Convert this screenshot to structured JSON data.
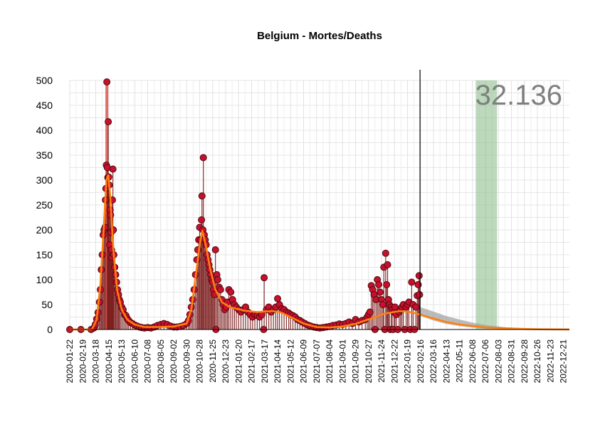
{
  "chart_data": {
    "type": "line",
    "title": "Belgium - Mortes/Deaths",
    "annotation_total": "32.136",
    "xlabel": "",
    "ylabel": "",
    "ylim": [
      0,
      500
    ],
    "yticks": [
      0,
      50,
      100,
      150,
      200,
      250,
      300,
      350,
      400,
      450,
      500
    ],
    "x_range": [
      "2020-01-22",
      "2023-01-03"
    ],
    "xticks": [
      "2020-01-22",
      "2020-02-19",
      "2020-03-18",
      "2020-04-15",
      "2020-05-13",
      "2020-06-10",
      "2020-07-08",
      "2020-08-05",
      "2020-09-02",
      "2020-09-30",
      "2020-10-28",
      "2020-11-25",
      "2020-12-23",
      "2021-01-20",
      "2021-02-17",
      "2021-03-17",
      "2021-04-14",
      "2021-05-12",
      "2021-06-09",
      "2021-07-07",
      "2021-08-04",
      "2021-09-01",
      "2021-09-29",
      "2021-10-27",
      "2021-11-24",
      "2021-12-22",
      "2022-01-19",
      "2022-02-16",
      "2022-03-16",
      "2022-04-13",
      "2022-05-11",
      "2022-06-08",
      "2022-07-06",
      "2022-08-03",
      "2022-08-31",
      "2022-09-28",
      "2022-10-26",
      "2022-11-23",
      "2022-12-21"
    ],
    "grid": true,
    "legend": "none",
    "vline_date": "2022-02-15",
    "highlight_band": [
      "2022-06-15",
      "2022-07-31"
    ],
    "series": [
      {
        "kind": "daily_points",
        "points": [
          [
            "2020-01-22",
            0
          ],
          [
            "2020-02-15",
            0
          ],
          [
            "2020-03-08",
            0
          ],
          [
            "2020-03-14",
            3
          ],
          [
            "2020-03-17",
            10
          ],
          [
            "2020-03-20",
            21
          ],
          [
            "2020-03-23",
            34
          ],
          [
            "2020-03-26",
            55
          ],
          [
            "2020-03-28",
            80
          ],
          [
            "2020-03-30",
            120
          ],
          [
            "2020-04-01",
            150
          ],
          [
            "2020-04-03",
            190
          ],
          [
            "2020-04-05",
            200
          ],
          [
            "2020-04-07",
            205
          ],
          [
            "2020-04-08",
            260
          ],
          [
            "2020-04-09",
            283
          ],
          [
            "2020-04-10",
            330
          ],
          [
            "2020-04-11",
            497
          ],
          [
            "2020-04-12",
            325
          ],
          [
            "2020-04-13",
            305
          ],
          [
            "2020-04-14",
            417
          ],
          [
            "2020-04-15",
            306
          ],
          [
            "2020-04-16",
            290
          ],
          [
            "2020-04-17",
            170
          ],
          [
            "2020-04-18",
            240
          ],
          [
            "2020-04-19",
            230
          ],
          [
            "2020-04-20",
            195
          ],
          [
            "2020-04-21",
            160
          ],
          [
            "2020-04-22",
            145
          ],
          [
            "2020-04-23",
            260
          ],
          [
            "2020-04-24",
            322
          ],
          [
            "2020-04-25",
            200
          ],
          [
            "2020-04-26",
            150
          ],
          [
            "2020-04-28",
            125
          ],
          [
            "2020-04-30",
            110
          ],
          [
            "2020-05-02",
            95
          ],
          [
            "2020-05-04",
            80
          ],
          [
            "2020-05-06",
            70
          ],
          [
            "2020-05-08",
            60
          ],
          [
            "2020-05-10",
            55
          ],
          [
            "2020-05-13",
            45
          ],
          [
            "2020-05-16",
            40
          ],
          [
            "2020-05-19",
            30
          ],
          [
            "2020-05-22",
            28
          ],
          [
            "2020-05-25",
            22
          ],
          [
            "2020-05-28",
            18
          ],
          [
            "2020-06-01",
            14
          ],
          [
            "2020-06-05",
            12
          ],
          [
            "2020-06-10",
            9
          ],
          [
            "2020-06-15",
            7
          ],
          [
            "2020-06-20",
            5
          ],
          [
            "2020-06-25",
            4
          ],
          [
            "2020-07-01",
            3
          ],
          [
            "2020-07-08",
            4
          ],
          [
            "2020-07-15",
            3
          ],
          [
            "2020-07-22",
            5
          ],
          [
            "2020-07-29",
            8
          ],
          [
            "2020-08-05",
            10
          ],
          [
            "2020-08-12",
            12
          ],
          [
            "2020-08-19",
            10
          ],
          [
            "2020-08-26",
            7
          ],
          [
            "2020-09-02",
            5
          ],
          [
            "2020-09-09",
            5
          ],
          [
            "2020-09-16",
            6
          ],
          [
            "2020-09-23",
            8
          ],
          [
            "2020-09-30",
            12
          ],
          [
            "2020-10-04",
            18
          ],
          [
            "2020-10-07",
            30
          ],
          [
            "2020-10-10",
            45
          ],
          [
            "2020-10-13",
            60
          ],
          [
            "2020-10-16",
            80
          ],
          [
            "2020-10-19",
            110
          ],
          [
            "2020-10-22",
            140
          ],
          [
            "2020-10-24",
            160
          ],
          [
            "2020-10-26",
            180
          ],
          [
            "2020-10-28",
            205
          ],
          [
            "2020-10-30",
            180
          ],
          [
            "2020-11-01",
            220
          ],
          [
            "2020-11-02",
            268
          ],
          [
            "2020-11-04",
            200
          ],
          [
            "2020-11-05",
            345
          ],
          [
            "2020-11-07",
            190
          ],
          [
            "2020-11-09",
            180
          ],
          [
            "2020-11-11",
            170
          ],
          [
            "2020-11-13",
            150
          ],
          [
            "2020-11-15",
            140
          ],
          [
            "2020-11-17",
            130
          ],
          [
            "2020-11-19",
            120
          ],
          [
            "2020-11-21",
            110
          ],
          [
            "2020-11-23",
            100
          ],
          [
            "2020-11-25",
            95
          ],
          [
            "2020-11-27",
            80
          ],
          [
            "2020-11-29",
            70
          ],
          [
            "2020-12-01",
            160
          ],
          [
            "2020-12-02",
            0
          ],
          [
            "2020-12-04",
            110
          ],
          [
            "2020-12-06",
            100
          ],
          [
            "2020-12-09",
            85
          ],
          [
            "2020-12-12",
            80
          ],
          [
            "2020-12-15",
            60
          ],
          [
            "2020-12-18",
            50
          ],
          [
            "2020-12-21",
            40
          ],
          [
            "2020-12-24",
            45
          ],
          [
            "2020-12-27",
            55
          ],
          [
            "2020-12-30",
            80
          ],
          [
            "2021-01-03",
            75
          ],
          [
            "2021-01-07",
            60
          ],
          [
            "2021-01-11",
            50
          ],
          [
            "2021-01-15",
            45
          ],
          [
            "2021-01-20",
            40
          ],
          [
            "2021-01-25",
            35
          ],
          [
            "2021-01-30",
            40
          ],
          [
            "2021-02-04",
            45
          ],
          [
            "2021-02-09",
            35
          ],
          [
            "2021-02-14",
            30
          ],
          [
            "2021-02-19",
            25
          ],
          [
            "2021-02-24",
            30
          ],
          [
            "2021-03-01",
            28
          ],
          [
            "2021-03-06",
            25
          ],
          [
            "2021-03-11",
            30
          ],
          [
            "2021-03-15",
            0
          ],
          [
            "2021-03-16",
            104
          ],
          [
            "2021-03-21",
            40
          ],
          [
            "2021-03-26",
            45
          ],
          [
            "2021-03-31",
            35
          ],
          [
            "2021-04-05",
            40
          ],
          [
            "2021-04-10",
            45
          ],
          [
            "2021-04-14",
            62
          ],
          [
            "2021-04-18",
            50
          ],
          [
            "2021-04-23",
            42
          ],
          [
            "2021-04-28",
            40
          ],
          [
            "2021-05-03",
            35
          ],
          [
            "2021-05-08",
            33
          ],
          [
            "2021-05-12",
            30
          ],
          [
            "2021-05-17",
            28
          ],
          [
            "2021-05-22",
            25
          ],
          [
            "2021-05-27",
            20
          ],
          [
            "2021-06-01",
            18
          ],
          [
            "2021-06-06",
            15
          ],
          [
            "2021-06-12",
            12
          ],
          [
            "2021-06-18",
            9
          ],
          [
            "2021-06-24",
            7
          ],
          [
            "2021-07-01",
            5
          ],
          [
            "2021-07-07",
            4
          ],
          [
            "2021-07-14",
            3
          ],
          [
            "2021-07-21",
            4
          ],
          [
            "2021-07-28",
            5
          ],
          [
            "2021-08-04",
            6
          ],
          [
            "2021-08-11",
            8
          ],
          [
            "2021-08-18",
            9
          ],
          [
            "2021-08-25",
            11
          ],
          [
            "2021-09-01",
            10
          ],
          [
            "2021-09-08",
            12
          ],
          [
            "2021-09-15",
            15
          ],
          [
            "2021-09-22",
            12
          ],
          [
            "2021-09-29",
            20
          ],
          [
            "2021-10-06",
            15
          ],
          [
            "2021-10-13",
            18
          ],
          [
            "2021-10-20",
            20
          ],
          [
            "2021-10-24",
            25
          ],
          [
            "2021-10-27",
            30
          ],
          [
            "2021-10-30",
            35
          ],
          [
            "2021-11-02",
            88
          ],
          [
            "2021-11-05",
            80
          ],
          [
            "2021-11-08",
            70
          ],
          [
            "2021-11-10",
            0
          ],
          [
            "2021-11-12",
            60
          ],
          [
            "2021-11-15",
            100
          ],
          [
            "2021-11-18",
            90
          ],
          [
            "2021-11-21",
            75
          ],
          [
            "2021-11-24",
            60
          ],
          [
            "2021-11-27",
            50
          ],
          [
            "2021-11-29",
            125
          ],
          [
            "2021-12-01",
            0
          ],
          [
            "2021-12-03",
            153
          ],
          [
            "2021-12-05",
            90
          ],
          [
            "2021-12-07",
            130
          ],
          [
            "2021-12-09",
            60
          ],
          [
            "2021-12-11",
            50
          ],
          [
            "2021-12-13",
            0
          ],
          [
            "2021-12-15",
            45
          ],
          [
            "2021-12-17",
            40
          ],
          [
            "2021-12-19",
            0
          ],
          [
            "2021-12-21",
            35
          ],
          [
            "2021-12-23",
            45
          ],
          [
            "2021-12-26",
            30
          ],
          [
            "2021-12-29",
            0
          ],
          [
            "2022-01-01",
            35
          ],
          [
            "2022-01-04",
            40
          ],
          [
            "2022-01-07",
            45
          ],
          [
            "2022-01-10",
            50
          ],
          [
            "2022-01-13",
            0
          ],
          [
            "2022-01-16",
            45
          ],
          [
            "2022-01-19",
            50
          ],
          [
            "2022-01-22",
            55
          ],
          [
            "2022-01-25",
            0
          ],
          [
            "2022-01-28",
            95
          ],
          [
            "2022-01-31",
            50
          ],
          [
            "2022-02-03",
            0
          ],
          [
            "2022-02-06",
            45
          ],
          [
            "2022-02-09",
            68
          ],
          [
            "2022-02-11",
            90
          ],
          [
            "2022-02-13",
            108
          ],
          [
            "2022-02-14",
            70
          ]
        ]
      },
      {
        "kind": "smooth_fit",
        "points": [
          [
            "2020-01-22",
            0
          ],
          [
            "2020-03-10",
            0
          ],
          [
            "2020-03-20",
            20
          ],
          [
            "2020-03-28",
            90
          ],
          [
            "2020-04-04",
            200
          ],
          [
            "2020-04-10",
            300
          ],
          [
            "2020-04-14",
            310
          ],
          [
            "2020-04-18",
            270
          ],
          [
            "2020-04-25",
            160
          ],
          [
            "2020-05-03",
            80
          ],
          [
            "2020-05-13",
            40
          ],
          [
            "2020-05-25",
            20
          ],
          [
            "2020-06-10",
            10
          ],
          [
            "2020-07-01",
            5
          ],
          [
            "2020-08-01",
            5
          ],
          [
            "2020-09-02",
            6
          ],
          [
            "2020-09-30",
            12
          ],
          [
            "2020-10-10",
            40
          ],
          [
            "2020-10-20",
            110
          ],
          [
            "2020-10-28",
            170
          ],
          [
            "2020-11-03",
            198
          ],
          [
            "2020-11-10",
            170
          ],
          [
            "2020-11-20",
            120
          ],
          [
            "2020-12-01",
            80
          ],
          [
            "2020-12-15",
            55
          ],
          [
            "2021-01-01",
            45
          ],
          [
            "2021-02-01",
            38
          ],
          [
            "2021-03-01",
            35
          ],
          [
            "2021-04-01",
            37
          ],
          [
            "2021-04-20",
            35
          ],
          [
            "2021-05-12",
            25
          ],
          [
            "2021-06-09",
            12
          ],
          [
            "2021-07-07",
            5
          ],
          [
            "2021-08-04",
            4
          ],
          [
            "2021-09-01",
            6
          ],
          [
            "2021-10-01",
            12
          ],
          [
            "2021-11-01",
            22
          ],
          [
            "2021-12-01",
            32
          ],
          [
            "2022-01-01",
            37
          ],
          [
            "2022-01-20",
            36
          ],
          [
            "2022-02-15",
            30
          ],
          [
            "2022-03-16",
            22
          ],
          [
            "2022-04-13",
            15
          ],
          [
            "2022-05-11",
            10
          ],
          [
            "2022-06-08",
            7
          ],
          [
            "2022-07-06",
            4
          ],
          [
            "2022-08-03",
            3
          ],
          [
            "2022-09-01",
            2
          ],
          [
            "2022-10-01",
            1
          ],
          [
            "2022-11-01",
            0.5
          ],
          [
            "2022-12-01",
            0.2
          ],
          [
            "2023-01-03",
            0.1
          ]
        ]
      },
      {
        "kind": "forecast_band",
        "points": [
          [
            "2022-02-15",
            28,
            45
          ],
          [
            "2022-03-16",
            18,
            36
          ],
          [
            "2022-04-13",
            11,
            27
          ],
          [
            "2022-05-11",
            7,
            20
          ],
          [
            "2022-06-08",
            4,
            14
          ],
          [
            "2022-07-06",
            2,
            9
          ],
          [
            "2022-08-03",
            1,
            6
          ],
          [
            "2022-09-01",
            0.5,
            3
          ],
          [
            "2022-10-01",
            0.2,
            2
          ],
          [
            "2022-11-01",
            0.1,
            1
          ],
          [
            "2023-01-03",
            0,
            0.5
          ]
        ]
      }
    ]
  }
}
